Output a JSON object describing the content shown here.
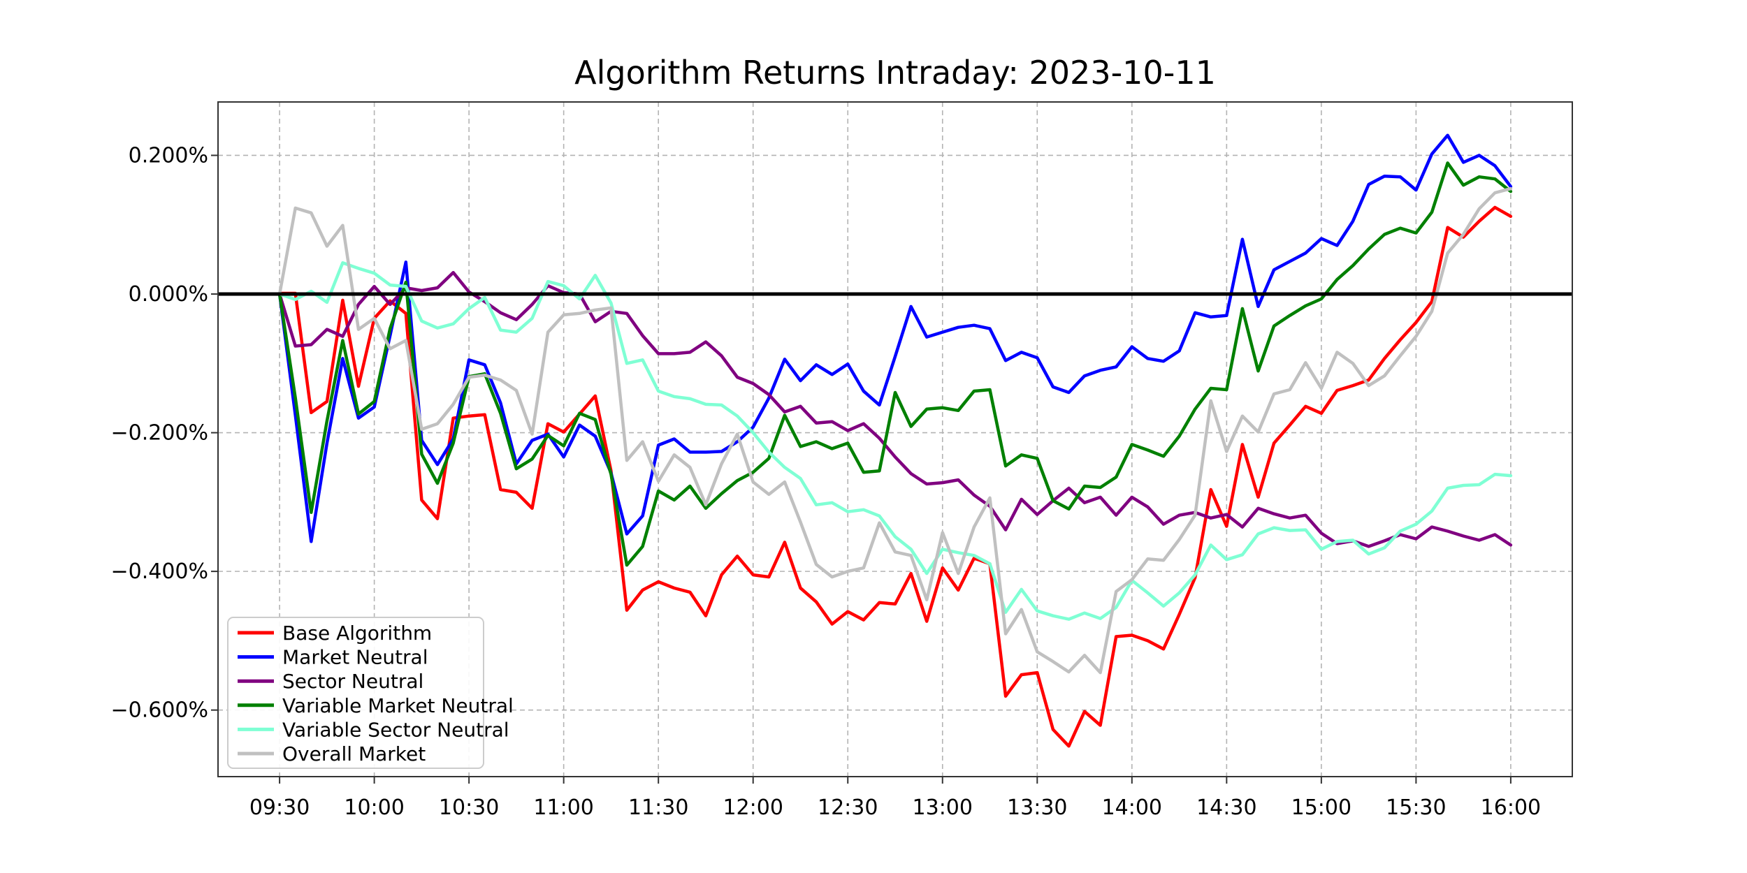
{
  "chart_data": {
    "type": "line",
    "title": "Algorithm Returns Intraday: 2023-10-11",
    "xlabel": "",
    "ylabel": "",
    "x_times_start": "09:30",
    "x_interval_minutes": 5,
    "n_points": 79,
    "x_tick_labels": [
      "09:30",
      "10:00",
      "10:30",
      "11:00",
      "11:30",
      "12:00",
      "12:30",
      "13:00",
      "13:30",
      "14:00",
      "14:30",
      "15:00",
      "15:30",
      "16:00"
    ],
    "x_tick_every_n_points": 6,
    "y_ticks": [
      0.2,
      0.0,
      -0.2,
      -0.4,
      -0.6
    ],
    "y_tick_labels": [
      "0.200%",
      "0.000%",
      "−0.200%",
      "−0.400%",
      "−0.600%"
    ],
    "ylim": [
      -0.696,
      0.277
    ],
    "grid": true,
    "grid_style": "dashed",
    "zero_line": true,
    "zero_line_color": "#000000",
    "legend_position": "lower-left",
    "background_color": "#ffffff",
    "series": [
      {
        "name": "Base Algorithm",
        "color": "#ff0000",
        "values": [
          0.001,
          0.001,
          -0.171,
          -0.155,
          -0.009,
          -0.133,
          -0.035,
          -0.01,
          -0.028,
          -0.297,
          -0.324,
          -0.179,
          -0.176,
          -0.174,
          -0.282,
          -0.286,
          -0.309,
          -0.187,
          -0.199,
          -0.173,
          -0.147,
          -0.255,
          -0.456,
          -0.427,
          -0.415,
          -0.424,
          -0.43,
          -0.464,
          -0.405,
          -0.378,
          -0.405,
          -0.408,
          -0.358,
          -0.424,
          -0.444,
          -0.476,
          -0.458,
          -0.47,
          -0.445,
          -0.447,
          -0.403,
          -0.472,
          -0.395,
          -0.427,
          -0.381,
          -0.389,
          -0.58,
          -0.549,
          -0.546,
          -0.628,
          -0.652,
          -0.602,
          -0.622,
          -0.494,
          -0.492,
          -0.5,
          -0.512,
          -0.462,
          -0.409,
          -0.282,
          -0.335,
          -0.217,
          -0.293,
          -0.215,
          -0.189,
          -0.162,
          -0.172,
          -0.139,
          -0.132,
          -0.124,
          -0.093,
          -0.066,
          -0.041,
          -0.011,
          0.096,
          0.082,
          0.105,
          0.125,
          0.112
        ]
      },
      {
        "name": "Market Neutral",
        "color": "#0000ff",
        "values": [
          0.0,
          -0.175,
          -0.357,
          -0.215,
          -0.093,
          -0.179,
          -0.163,
          -0.06,
          0.046,
          -0.211,
          -0.246,
          -0.209,
          -0.095,
          -0.102,
          -0.157,
          -0.245,
          -0.211,
          -0.202,
          -0.235,
          -0.189,
          -0.205,
          -0.258,
          -0.346,
          -0.32,
          -0.218,
          -0.209,
          -0.228,
          -0.228,
          -0.227,
          -0.213,
          -0.192,
          -0.15,
          -0.094,
          -0.125,
          -0.102,
          -0.116,
          -0.101,
          -0.14,
          -0.16,
          -0.09,
          -0.018,
          -0.062,
          -0.055,
          -0.048,
          -0.045,
          -0.05,
          -0.096,
          -0.084,
          -0.092,
          -0.134,
          -0.142,
          -0.118,
          -0.11,
          -0.105,
          -0.076,
          -0.093,
          -0.097,
          -0.082,
          -0.027,
          -0.033,
          -0.031,
          0.079,
          -0.018,
          0.035,
          0.047,
          0.059,
          0.08,
          0.07,
          0.105,
          0.158,
          0.17,
          0.169,
          0.15,
          0.202,
          0.229,
          0.19,
          0.2,
          0.185,
          0.155
        ]
      },
      {
        "name": "Sector Neutral",
        "color": "#800080",
        "values": [
          0.0,
          -0.075,
          -0.073,
          -0.051,
          -0.061,
          -0.015,
          0.011,
          -0.015,
          0.009,
          0.005,
          0.009,
          0.031,
          0.003,
          -0.011,
          -0.027,
          -0.037,
          -0.015,
          0.012,
          0.002,
          0.0,
          -0.04,
          -0.025,
          -0.028,
          -0.06,
          -0.086,
          -0.086,
          -0.084,
          -0.069,
          -0.089,
          -0.12,
          -0.129,
          -0.145,
          -0.17,
          -0.162,
          -0.186,
          -0.184,
          -0.197,
          -0.187,
          -0.208,
          -0.235,
          -0.259,
          -0.274,
          -0.272,
          -0.268,
          -0.29,
          -0.306,
          -0.34,
          -0.296,
          -0.318,
          -0.298,
          -0.28,
          -0.301,
          -0.293,
          -0.319,
          -0.293,
          -0.307,
          -0.332,
          -0.319,
          -0.315,
          -0.323,
          -0.318,
          -0.336,
          -0.309,
          -0.317,
          -0.323,
          -0.319,
          -0.345,
          -0.36,
          -0.356,
          -0.364,
          -0.356,
          -0.347,
          -0.353,
          -0.336,
          -0.342,
          -0.349,
          -0.355,
          -0.347,
          -0.362
        ]
      },
      {
        "name": "Variable Market Neutral",
        "color": "#008000",
        "values": [
          0.0,
          -0.15,
          -0.315,
          -0.183,
          -0.067,
          -0.173,
          -0.155,
          -0.05,
          0.017,
          -0.231,
          -0.273,
          -0.215,
          -0.119,
          -0.115,
          -0.172,
          -0.252,
          -0.238,
          -0.204,
          -0.219,
          -0.172,
          -0.181,
          -0.26,
          -0.391,
          -0.364,
          -0.284,
          -0.297,
          -0.277,
          -0.309,
          -0.288,
          -0.269,
          -0.257,
          -0.237,
          -0.175,
          -0.22,
          -0.213,
          -0.223,
          -0.215,
          -0.257,
          -0.255,
          -0.142,
          -0.191,
          -0.166,
          -0.164,
          -0.168,
          -0.14,
          -0.138,
          -0.248,
          -0.232,
          -0.237,
          -0.298,
          -0.31,
          -0.277,
          -0.279,
          -0.264,
          -0.217,
          -0.225,
          -0.234,
          -0.205,
          -0.166,
          -0.136,
          -0.138,
          -0.021,
          -0.111,
          -0.046,
          -0.031,
          -0.017,
          -0.007,
          0.021,
          0.041,
          0.065,
          0.086,
          0.095,
          0.088,
          0.118,
          0.189,
          0.157,
          0.169,
          0.166,
          0.148
        ]
      },
      {
        "name": "Variable Sector Neutral",
        "color": "#7fffd4",
        "values": [
          0.0,
          -0.008,
          0.004,
          -0.012,
          0.045,
          0.037,
          0.03,
          0.013,
          0.011,
          -0.039,
          -0.049,
          -0.043,
          -0.021,
          -0.005,
          -0.052,
          -0.055,
          -0.035,
          0.018,
          0.012,
          -0.007,
          0.027,
          -0.013,
          -0.1,
          -0.095,
          -0.14,
          -0.148,
          -0.151,
          -0.159,
          -0.16,
          -0.176,
          -0.2,
          -0.228,
          -0.25,
          -0.266,
          -0.304,
          -0.301,
          -0.314,
          -0.311,
          -0.32,
          -0.35,
          -0.368,
          -0.403,
          -0.368,
          -0.373,
          -0.377,
          -0.389,
          -0.459,
          -0.426,
          -0.457,
          -0.464,
          -0.469,
          -0.46,
          -0.468,
          -0.452,
          -0.413,
          -0.431,
          -0.45,
          -0.431,
          -0.405,
          -0.362,
          -0.383,
          -0.376,
          -0.346,
          -0.337,
          -0.341,
          -0.34,
          -0.368,
          -0.357,
          -0.355,
          -0.375,
          -0.366,
          -0.342,
          -0.332,
          -0.313,
          -0.28,
          -0.276,
          -0.275,
          -0.26,
          -0.262
        ]
      },
      {
        "name": "Overall Market",
        "color": "#c0c0c0",
        "values": [
          0.0,
          0.124,
          0.117,
          0.069,
          0.099,
          -0.051,
          -0.035,
          -0.079,
          -0.067,
          -0.195,
          -0.187,
          -0.159,
          -0.12,
          -0.117,
          -0.124,
          -0.139,
          -0.202,
          -0.055,
          -0.03,
          -0.028,
          -0.023,
          -0.02,
          -0.24,
          -0.213,
          -0.27,
          -0.232,
          -0.25,
          -0.304,
          -0.245,
          -0.202,
          -0.271,
          -0.289,
          -0.271,
          -0.329,
          -0.39,
          -0.408,
          -0.4,
          -0.395,
          -0.33,
          -0.372,
          -0.377,
          -0.441,
          -0.344,
          -0.403,
          -0.336,
          -0.294,
          -0.49,
          -0.455,
          -0.516,
          -0.53,
          -0.545,
          -0.521,
          -0.546,
          -0.429,
          -0.412,
          -0.382,
          -0.384,
          -0.354,
          -0.319,
          -0.154,
          -0.227,
          -0.176,
          -0.199,
          -0.144,
          -0.138,
          -0.099,
          -0.136,
          -0.084,
          -0.1,
          -0.132,
          -0.118,
          -0.089,
          -0.061,
          -0.025,
          0.059,
          0.086,
          0.123,
          0.146,
          0.152
        ]
      }
    ]
  }
}
